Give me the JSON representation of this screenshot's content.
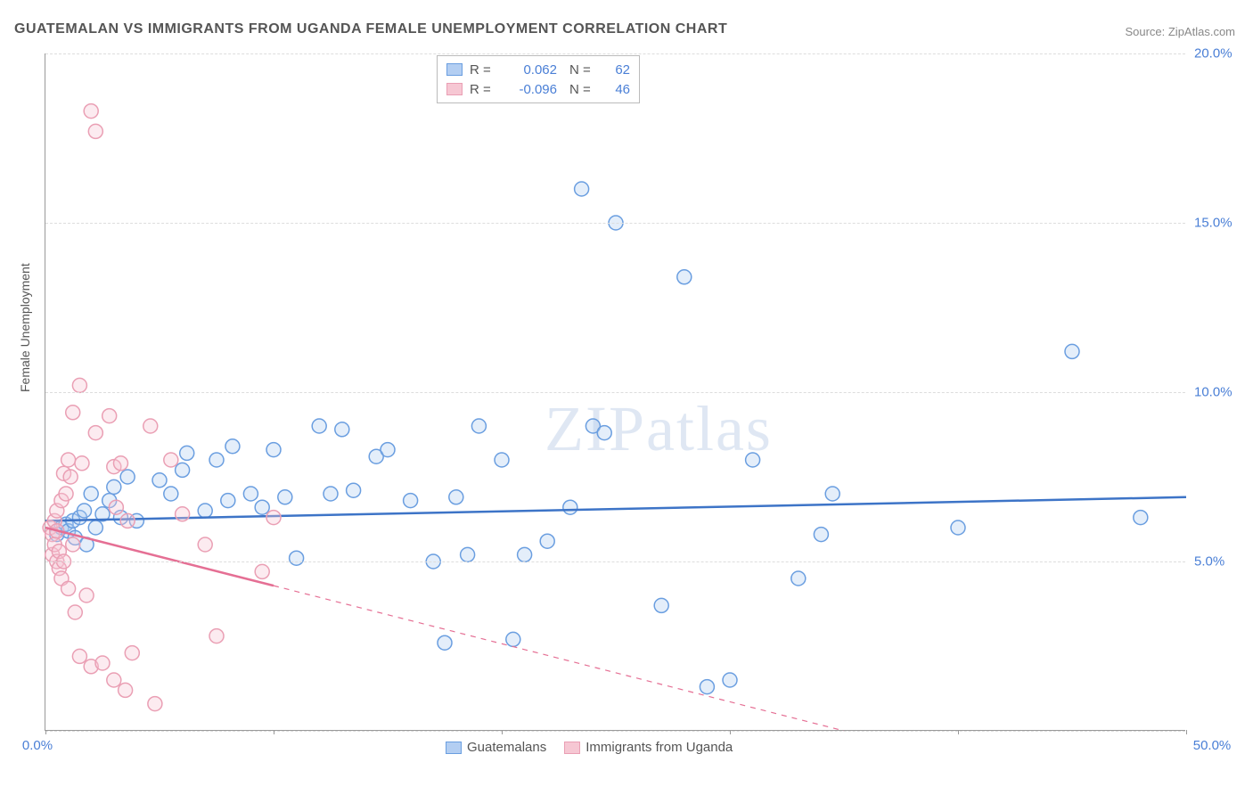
{
  "title": "GUATEMALAN VS IMMIGRANTS FROM UGANDA FEMALE UNEMPLOYMENT CORRELATION CHART",
  "source_label": "Source: ZipAtlas.com",
  "y_axis_label": "Female Unemployment",
  "watermark_zip": "ZIP",
  "watermark_atlas": "atlas",
  "chart": {
    "type": "scatter",
    "background_color": "#ffffff",
    "grid_color": "#dddddd",
    "axis_color": "#999999",
    "tick_label_color": "#4a7fd6",
    "tick_fontsize": 15,
    "xlim": [
      0,
      50
    ],
    "ylim": [
      0,
      20
    ],
    "x_tick_positions": [
      0,
      10,
      20,
      30,
      40,
      50
    ],
    "x_tick_labels": [
      "0.0%",
      "",
      "",
      "",
      "",
      "50.0%"
    ],
    "y_tick_positions": [
      0,
      5,
      10,
      15,
      20
    ],
    "y_tick_labels": [
      "",
      "5.0%",
      "10.0%",
      "15.0%",
      "20.0%"
    ],
    "marker_radius": 8,
    "marker_stroke_width": 1.5,
    "marker_fill_opacity": 0.35,
    "trend_line_width": 2.5,
    "series": [
      {
        "name": "Guatemalans",
        "color_fill": "#b3cef2",
        "color_stroke": "#6a9ee0",
        "trend_color": "#3d74c7",
        "R": "0.062",
        "N": "62",
        "trend": {
          "x1": 0,
          "y1": 6.2,
          "x2": 50,
          "y2": 6.9,
          "solid_until_x": 50
        },
        "points": [
          [
            0.5,
            5.8
          ],
          [
            0.7,
            6.0
          ],
          [
            0.9,
            6.1
          ],
          [
            1.0,
            5.9
          ],
          [
            1.2,
            6.2
          ],
          [
            1.3,
            5.7
          ],
          [
            1.5,
            6.3
          ],
          [
            1.7,
            6.5
          ],
          [
            1.8,
            5.5
          ],
          [
            2.0,
            7.0
          ],
          [
            2.2,
            6.0
          ],
          [
            2.5,
            6.4
          ],
          [
            2.8,
            6.8
          ],
          [
            3.0,
            7.2
          ],
          [
            3.3,
            6.3
          ],
          [
            3.6,
            7.5
          ],
          [
            4.0,
            6.2
          ],
          [
            5.0,
            7.4
          ],
          [
            5.5,
            7.0
          ],
          [
            6.0,
            7.7
          ],
          [
            6.2,
            8.2
          ],
          [
            7.0,
            6.5
          ],
          [
            7.5,
            8.0
          ],
          [
            8.0,
            6.8
          ],
          [
            8.2,
            8.4
          ],
          [
            9.0,
            7.0
          ],
          [
            9.5,
            6.6
          ],
          [
            10.0,
            8.3
          ],
          [
            10.5,
            6.9
          ],
          [
            11.0,
            5.1
          ],
          [
            12.0,
            9.0
          ],
          [
            12.5,
            7.0
          ],
          [
            13.0,
            8.9
          ],
          [
            13.5,
            7.1
          ],
          [
            14.5,
            8.1
          ],
          [
            15.0,
            8.3
          ],
          [
            16.0,
            6.8
          ],
          [
            17.0,
            5.0
          ],
          [
            17.5,
            2.6
          ],
          [
            18.0,
            6.9
          ],
          [
            18.5,
            5.2
          ],
          [
            19.0,
            9.0
          ],
          [
            20.0,
            8.0
          ],
          [
            20.5,
            2.7
          ],
          [
            21.0,
            5.2
          ],
          [
            22.0,
            5.6
          ],
          [
            23.0,
            6.6
          ],
          [
            23.5,
            16.0
          ],
          [
            24.0,
            9.0
          ],
          [
            24.5,
            8.8
          ],
          [
            25.0,
            15.0
          ],
          [
            27.0,
            3.7
          ],
          [
            28.0,
            13.4
          ],
          [
            29.0,
            1.3
          ],
          [
            30.0,
            1.5
          ],
          [
            31.0,
            8.0
          ],
          [
            33.0,
            4.5
          ],
          [
            34.0,
            5.8
          ],
          [
            34.5,
            7.0
          ],
          [
            40.0,
            6.0
          ],
          [
            45.0,
            11.2
          ],
          [
            48.0,
            6.3
          ]
        ]
      },
      {
        "name": "Immigrants from Uganda",
        "color_fill": "#f6c7d3",
        "color_stroke": "#ea9fb4",
        "trend_color": "#e56f94",
        "R": "-0.096",
        "N": "46",
        "trend": {
          "x1": 0,
          "y1": 6.0,
          "x2": 35,
          "y2": 0.0,
          "solid_until_x": 10
        },
        "points": [
          [
            0.2,
            6.0
          ],
          [
            0.3,
            5.8
          ],
          [
            0.3,
            5.2
          ],
          [
            0.4,
            5.5
          ],
          [
            0.4,
            6.2
          ],
          [
            0.5,
            5.0
          ],
          [
            0.5,
            5.9
          ],
          [
            0.5,
            6.5
          ],
          [
            0.6,
            4.8
          ],
          [
            0.6,
            5.3
          ],
          [
            0.7,
            6.8
          ],
          [
            0.7,
            4.5
          ],
          [
            0.8,
            7.6
          ],
          [
            0.8,
            5.0
          ],
          [
            0.9,
            7.0
          ],
          [
            1.0,
            8.0
          ],
          [
            1.0,
            4.2
          ],
          [
            1.1,
            7.5
          ],
          [
            1.2,
            5.5
          ],
          [
            1.2,
            9.4
          ],
          [
            1.3,
            3.5
          ],
          [
            1.5,
            10.2
          ],
          [
            1.5,
            2.2
          ],
          [
            1.6,
            7.9
          ],
          [
            1.8,
            4.0
          ],
          [
            2.0,
            18.3
          ],
          [
            2.0,
            1.9
          ],
          [
            2.2,
            8.8
          ],
          [
            2.2,
            17.7
          ],
          [
            2.5,
            2.0
          ],
          [
            2.8,
            9.3
          ],
          [
            3.0,
            7.8
          ],
          [
            3.0,
            1.5
          ],
          [
            3.1,
            6.6
          ],
          [
            3.3,
            7.9
          ],
          [
            3.5,
            1.2
          ],
          [
            3.6,
            6.2
          ],
          [
            3.8,
            2.3
          ],
          [
            4.6,
            9.0
          ],
          [
            4.8,
            0.8
          ],
          [
            5.5,
            8.0
          ],
          [
            6.0,
            6.4
          ],
          [
            7.0,
            5.5
          ],
          [
            7.5,
            2.8
          ],
          [
            9.5,
            4.7
          ],
          [
            10.0,
            6.3
          ]
        ]
      }
    ]
  },
  "legend_bottom": [
    {
      "label": "Guatemalans",
      "fill": "#b3cef2",
      "stroke": "#6a9ee0"
    },
    {
      "label": "Immigrants from Uganda",
      "fill": "#f6c7d3",
      "stroke": "#ea9fb4"
    }
  ]
}
